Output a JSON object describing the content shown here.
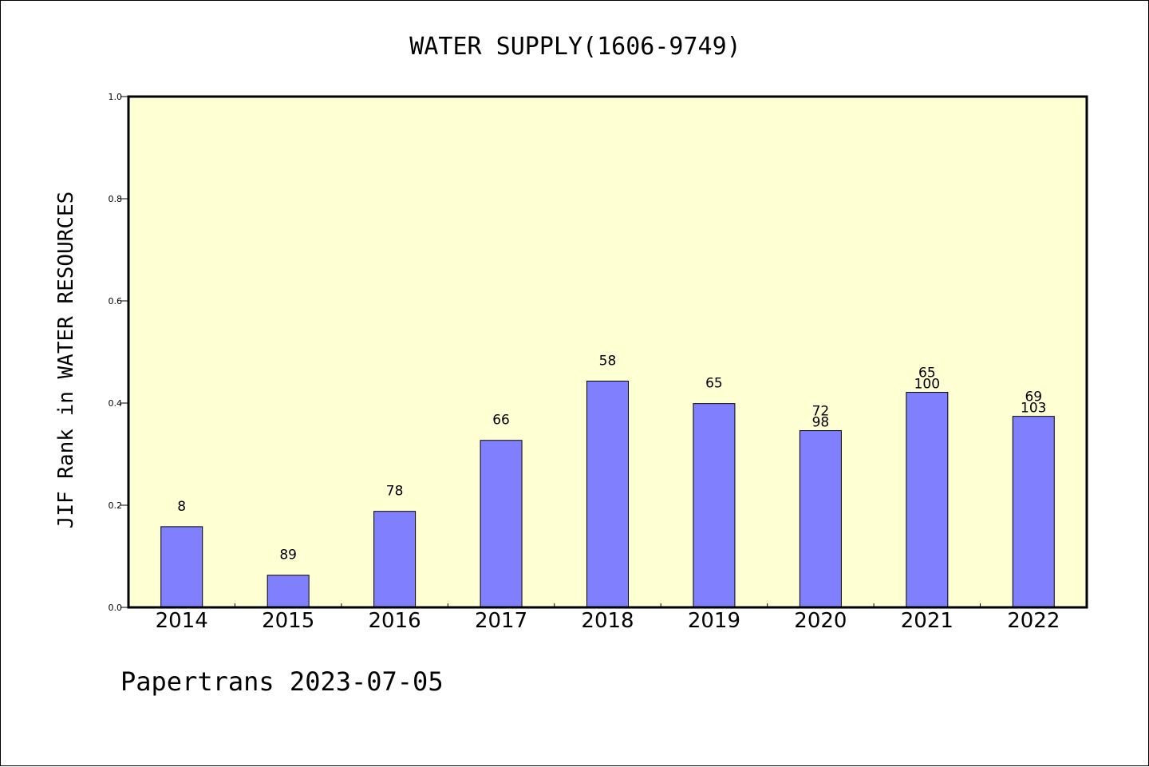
{
  "chart_data": {
    "type": "bar",
    "title": "WATER SUPPLY(1606-9749)",
    "ylabel": "JIF Rank in WATER RESOURCES",
    "xlabel": "",
    "footer": "Papertrans 2023-07-05",
    "ylim": [
      0,
      1.0
    ],
    "yticks": [
      "0.0",
      "0.2",
      "0.4",
      "0.6",
      "0.8",
      "1.0"
    ],
    "ytick_values": [
      0,
      0.2,
      0.4,
      0.6,
      0.8,
      1.0
    ],
    "categories": [
      "2014",
      "2015",
      "2016",
      "2017",
      "2018",
      "2019",
      "2020",
      "2021",
      "2022"
    ],
    "values": [
      0.158,
      0.063,
      0.188,
      0.327,
      0.443,
      0.399,
      0.346,
      0.421,
      0.374
    ],
    "rank_labels": [
      "8",
      "89",
      "78",
      "66",
      "58",
      "65",
      "72",
      "65",
      "69"
    ],
    "total_labels": [
      "",
      "",
      "",
      "",
      "",
      "",
      "98",
      "100",
      "103"
    ],
    "grid": false,
    "colors": {
      "plot_background": "#ffffd4",
      "bar_fill": "#8080ff",
      "bar_stroke": "#000000",
      "axis": "#000000"
    }
  }
}
